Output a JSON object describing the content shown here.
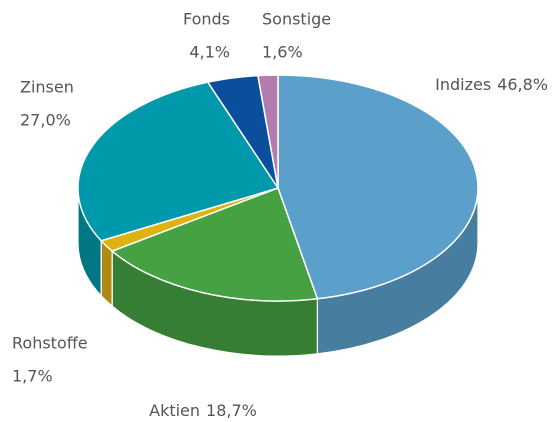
{
  "chart_data": {
    "type": "pie",
    "categories": [
      "Indizes",
      "Aktien",
      "Rohstoffe",
      "Zinsen",
      "Fonds",
      "Sonstige"
    ],
    "values": [
      46.8,
      18.7,
      1.7,
      27.0,
      4.1,
      1.6
    ],
    "value_labels": [
      "46,8%",
      "18,7%",
      "1,7%",
      "27,0%",
      "4,1%",
      "1,6%"
    ],
    "colors": [
      "#5ba0cb",
      "#45a142",
      "#dfb214",
      "#0098ab",
      "#0a4f9b",
      "#b37cae"
    ]
  }
}
